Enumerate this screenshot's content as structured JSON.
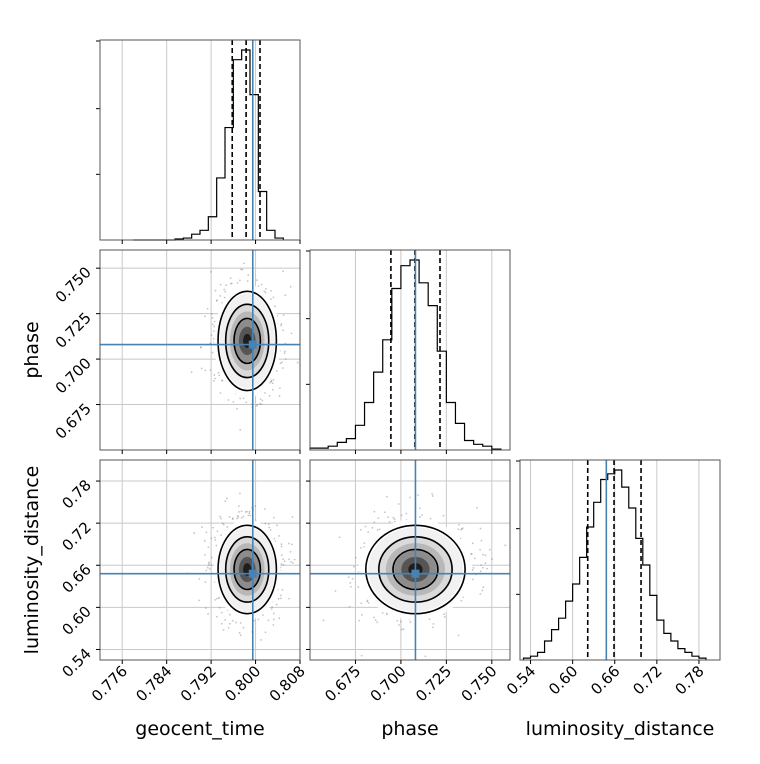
{
  "chart_data": {
    "type": "corner",
    "parameters": [
      "geocent_time",
      "phase",
      "luminosity_distance"
    ],
    "axis_labels": {
      "x": [
        "geocent_time",
        "phase",
        "luminosity_distance"
      ],
      "y": [
        "",
        "phase",
        "luminosity_distance"
      ]
    },
    "ranges": {
      "geocent_time": [
        0.772,
        0.808
      ],
      "phase": [
        0.65,
        0.76
      ],
      "luminosity_distance": [
        0.525,
        0.81
      ]
    },
    "ticks": {
      "geocent_time": {
        "values": [
          0.776,
          0.784,
          0.792,
          0.8,
          0.808
        ],
        "labels": [
          "0.776",
          "0.784",
          "0.792",
          "0.800",
          "0.808"
        ]
      },
      "phase": {
        "values": [
          0.675,
          0.7,
          0.725,
          0.75
        ],
        "labels": [
          "0.675",
          "0.700",
          "0.725",
          "0.750"
        ]
      },
      "luminosity_distance": {
        "values": [
          0.54,
          0.6,
          0.66,
          0.72,
          0.78
        ],
        "labels": [
          "0.54",
          "0.60",
          "0.66",
          "0.72",
          "0.78"
        ]
      }
    },
    "truths": {
      "geocent_time": 0.7995,
      "phase": 0.708,
      "luminosity_distance": 0.648
    },
    "quantiles": {
      "geocent_time": [
        0.7958,
        0.7983,
        0.8008
      ],
      "phase": [
        0.6945,
        0.7077,
        0.7215
      ],
      "luminosity_distance": [
        0.6215,
        0.659,
        0.6975
      ]
    },
    "histograms": {
      "geocent_time": {
        "edges": [
          0.778,
          0.7795,
          0.781,
          0.7825,
          0.784,
          0.7855,
          0.787,
          0.7885,
          0.79,
          0.7915,
          0.793,
          0.7945,
          0.796,
          0.7975,
          0.799,
          0.8005,
          0.802,
          0.8035,
          0.805
        ],
        "counts": [
          0.0,
          0.0,
          0.0,
          0.0,
          0.0,
          0.005,
          0.01,
          0.03,
          0.05,
          0.12,
          0.32,
          0.58,
          0.93,
          0.98,
          0.75,
          0.25,
          0.05,
          0.01
        ]
      },
      "phase": {
        "edges": [
          0.65,
          0.655,
          0.66,
          0.665,
          0.67,
          0.675,
          0.68,
          0.685,
          0.69,
          0.695,
          0.7,
          0.705,
          0.71,
          0.715,
          0.72,
          0.725,
          0.73,
          0.735,
          0.74,
          0.745,
          0.75,
          0.755
        ],
        "counts": [
          0.01,
          0.01,
          0.02,
          0.04,
          0.06,
          0.13,
          0.25,
          0.41,
          0.58,
          0.85,
          0.97,
          1.0,
          0.88,
          0.76,
          0.52,
          0.25,
          0.14,
          0.05,
          0.03,
          0.02,
          0.005
        ]
      },
      "luminosity_distance": {
        "edges": [
          0.53,
          0.54,
          0.55,
          0.56,
          0.57,
          0.58,
          0.59,
          0.6,
          0.61,
          0.62,
          0.63,
          0.64,
          0.65,
          0.66,
          0.67,
          0.68,
          0.69,
          0.7,
          0.71,
          0.72,
          0.73,
          0.74,
          0.75,
          0.76,
          0.77,
          0.78,
          0.79
        ],
        "counts": [
          0.01,
          0.02,
          0.04,
          0.1,
          0.16,
          0.22,
          0.31,
          0.4,
          0.54,
          0.7,
          0.83,
          0.95,
          0.98,
          1.0,
          0.91,
          0.8,
          0.64,
          0.5,
          0.34,
          0.21,
          0.14,
          0.1,
          0.06,
          0.04,
          0.02,
          0.01
        ]
      }
    },
    "pairs": [
      {
        "x": "geocent_time",
        "y": "phase",
        "mean": [
          0.7985,
          0.71
        ],
        "sd": [
          0.0025,
          0.013
        ]
      },
      {
        "x": "geocent_time",
        "y": "luminosity_distance",
        "mean": [
          0.7985,
          0.654
        ],
        "sd": [
          0.0025,
          0.03
        ]
      },
      {
        "x": "phase",
        "y": "luminosity_distance",
        "mean": [
          0.708,
          0.654
        ],
        "sd": [
          0.013,
          0.03
        ]
      }
    ],
    "colors": {
      "truth": "#4682b4",
      "hist": "#000000",
      "grid": "#c8c8c8",
      "points": "#7f7f7f"
    },
    "grid": true
  }
}
